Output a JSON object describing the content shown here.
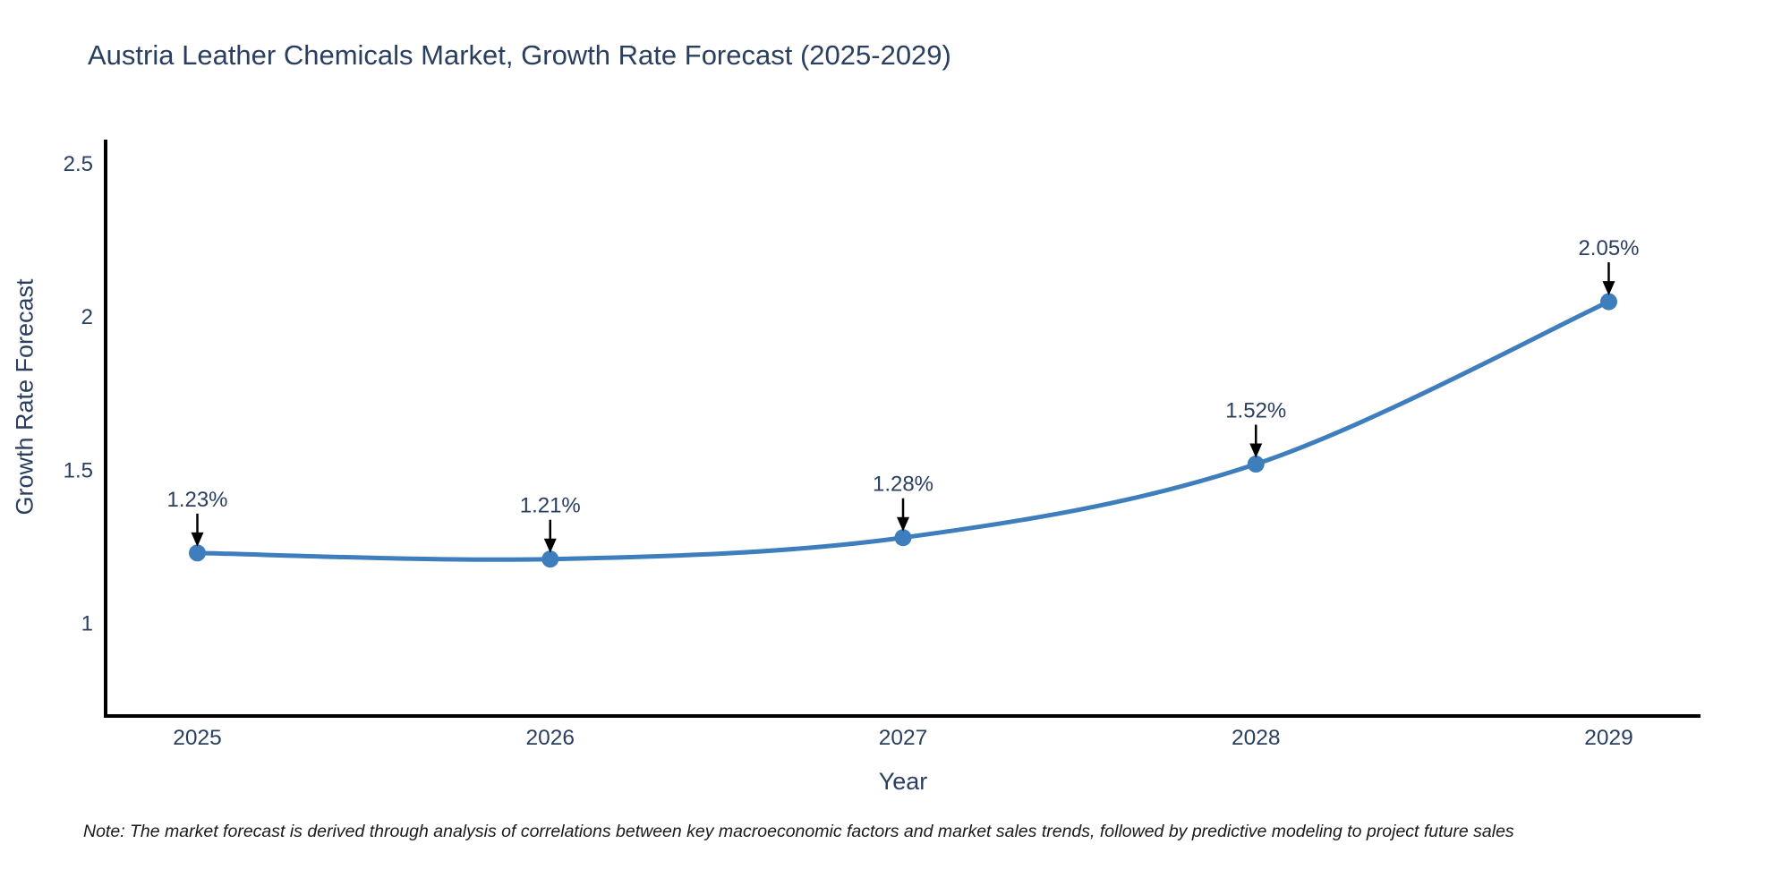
{
  "title": "Austria Leather Chemicals Market, Growth Rate Forecast (2025-2029)",
  "note": "Note: The market forecast is derived through analysis of correlations between key macroeconomic factors and market sales trends, followed by predictive modeling to project future sales",
  "chart_data": {
    "type": "line",
    "line_shape": "spline",
    "title": "Austria Leather Chemicals Market, Growth Rate Forecast (2025-2029)",
    "xlabel": "Year",
    "ylabel": "Growth Rate Forecast",
    "x": [
      2025,
      2026,
      2027,
      2028,
      2029
    ],
    "values": [
      1.23,
      1.21,
      1.28,
      1.52,
      2.05
    ],
    "point_labels": [
      "1.23%",
      "1.21%",
      "1.28%",
      "1.52%",
      "2.05%"
    ],
    "yticks": [
      1,
      1.5,
      2,
      2.5
    ],
    "ylim": [
      0.698,
      2.573
    ],
    "xlim": [
      2024.74,
      2029.26
    ],
    "grid": false,
    "legend": false,
    "line_color": "#3E7EBC",
    "marker_color": "#3E7EBC",
    "axis_color": "#000000",
    "label_color": "#2a3f5f",
    "annotation_arrow_color": "#000000"
  }
}
